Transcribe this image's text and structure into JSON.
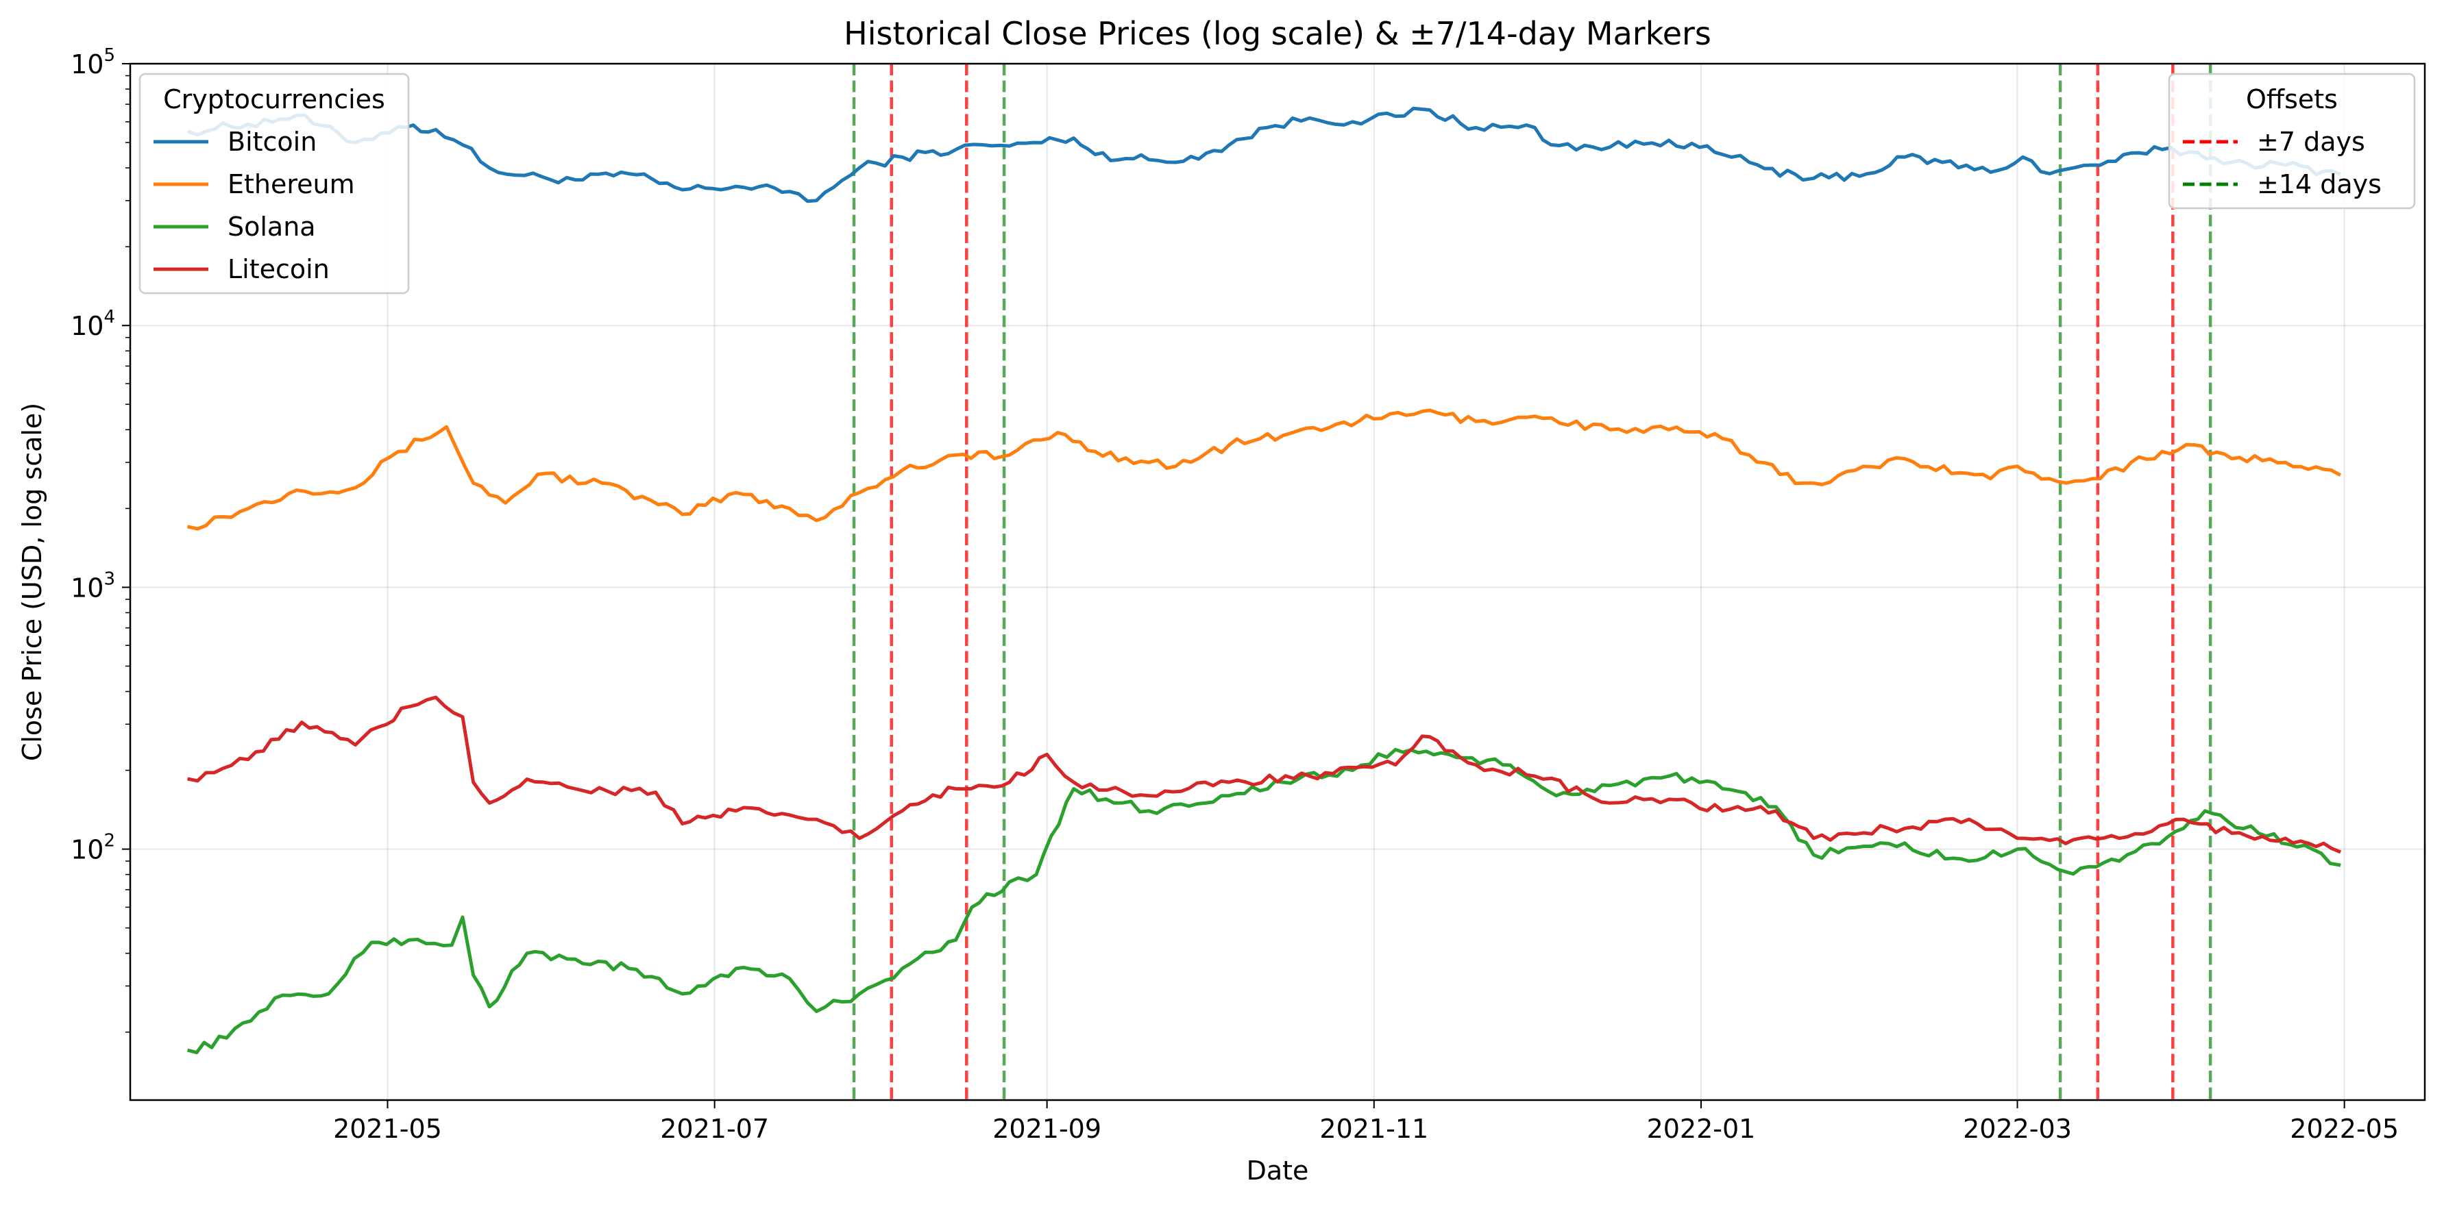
{
  "chart_data": {
    "type": "line",
    "title": "Historical Close Prices (log scale) & ±7/14-day Markers",
    "xlabel": "Date",
    "ylabel": "Close Price (USD, log scale)",
    "yscale": "log",
    "xlim": [
      "2021-03-14",
      "2022-05-16"
    ],
    "ylim": [
      11,
      100000
    ],
    "grid": true,
    "x_ticks": [
      {
        "date": "2021-05-01",
        "label": "2021-05"
      },
      {
        "date": "2021-07-01",
        "label": "2021-07"
      },
      {
        "date": "2021-09-01",
        "label": "2021-09"
      },
      {
        "date": "2021-11-01",
        "label": "2021-11"
      },
      {
        "date": "2022-01-01",
        "label": "2022-01"
      },
      {
        "date": "2022-03-01",
        "label": "2022-03"
      },
      {
        "date": "2022-05-01",
        "label": "2022-05"
      }
    ],
    "y_ticks": [
      {
        "value": 100,
        "base": "10",
        "exp": "2"
      },
      {
        "value": 1000,
        "base": "10",
        "exp": "3"
      },
      {
        "value": 10000,
        "base": "10",
        "exp": "4"
      },
      {
        "value": 100000,
        "base": "10",
        "exp": "5"
      }
    ],
    "series": [
      {
        "name": "Bitcoin",
        "color": "#1f77b4",
        "x": [
          "2021-03-25",
          "2021-04-05",
          "2021-04-14",
          "2021-04-25",
          "2021-05-03",
          "2021-05-10",
          "2021-05-15",
          "2021-05-20",
          "2021-05-25",
          "2021-06-05",
          "2021-06-15",
          "2021-06-25",
          "2021-07-05",
          "2021-07-15",
          "2021-07-20",
          "2021-07-28",
          "2021-08-05",
          "2021-08-15",
          "2021-08-20",
          "2021-08-25",
          "2021-09-06",
          "2021-09-10",
          "2021-09-20",
          "2021-09-25",
          "2021-10-05",
          "2021-10-12",
          "2021-10-20",
          "2021-10-28",
          "2021-11-05",
          "2021-11-10",
          "2021-11-20",
          "2021-12-01",
          "2021-12-04",
          "2021-12-15",
          "2021-12-26",
          "2022-01-05",
          "2022-01-10",
          "2022-01-20",
          "2022-01-22",
          "2022-02-01",
          "2022-02-08",
          "2022-02-15",
          "2022-02-24",
          "2022-03-02",
          "2022-03-07",
          "2022-03-15",
          "2022-03-28",
          "2022-04-02",
          "2022-04-10",
          "2022-04-20",
          "2022-04-30"
        ],
        "values": [
          55000,
          58800,
          63500,
          50000,
          57500,
          56000,
          49000,
          40000,
          37500,
          36000,
          38000,
          33000,
          34000,
          32500,
          30000,
          40000,
          44000,
          47000,
          49000,
          48500,
          52000,
          45000,
          43000,
          42000,
          49000,
          57000,
          62000,
          60000,
          63000,
          67000,
          57000,
          57000,
          49000,
          48000,
          51000,
          45000,
          42000,
          36000,
          36500,
          38000,
          44000,
          42000,
          38500,
          44000,
          38000,
          41000,
          47000,
          46000,
          42000,
          41000,
          38000
        ]
      },
      {
        "name": "Ethereum",
        "color": "#ff7f0e",
        "x": [
          "2021-03-25",
          "2021-04-05",
          "2021-04-14",
          "2021-04-25",
          "2021-05-03",
          "2021-05-12",
          "2021-05-17",
          "2021-05-23",
          "2021-05-29",
          "2021-06-10",
          "2021-06-25",
          "2021-07-05",
          "2021-07-15",
          "2021-07-20",
          "2021-07-28",
          "2021-08-05",
          "2021-08-15",
          "2021-08-25",
          "2021-09-03",
          "2021-09-10",
          "2021-09-20",
          "2021-09-25",
          "2021-10-05",
          "2021-10-15",
          "2021-10-25",
          "2021-11-01",
          "2021-11-10",
          "2021-11-20",
          "2021-12-01",
          "2021-12-15",
          "2021-12-26",
          "2022-01-05",
          "2022-01-10",
          "2022-01-20",
          "2022-01-22",
          "2022-02-08",
          "2022-02-24",
          "2022-03-01",
          "2022-03-07",
          "2022-03-15",
          "2022-03-28",
          "2022-04-03",
          "2022-04-10",
          "2022-04-20",
          "2022-04-30"
        ],
        "values": [
          1700,
          2000,
          2350,
          2400,
          3300,
          4100,
          2500,
          2100,
          2700,
          2500,
          1900,
          2300,
          2000,
          1800,
          2300,
          2800,
          3200,
          3200,
          3900,
          3300,
          3000,
          2900,
          3500,
          3800,
          4200,
          4400,
          4700,
          4300,
          4500,
          4000,
          4000,
          3700,
          3200,
          2500,
          2500,
          3100,
          2600,
          2900,
          2600,
          2600,
          3300,
          3500,
          3100,
          3000,
          2700
        ]
      },
      {
        "name": "Solana",
        "color": "#2ca02c",
        "x": [
          "2021-03-25",
          "2021-04-01",
          "2021-04-10",
          "2021-04-20",
          "2021-04-28",
          "2021-05-05",
          "2021-05-13",
          "2021-05-15",
          "2021-05-17",
          "2021-05-20",
          "2021-05-27",
          "2021-06-05",
          "2021-06-15",
          "2021-06-25",
          "2021-07-05",
          "2021-07-15",
          "2021-07-20",
          "2021-07-28",
          "2021-08-05",
          "2021-08-15",
          "2021-08-18",
          "2021-08-25",
          "2021-08-30",
          "2021-09-06",
          "2021-09-15",
          "2021-09-20",
          "2021-10-05",
          "2021-10-15",
          "2021-10-28",
          "2021-11-05",
          "2021-11-15",
          "2021-11-25",
          "2021-12-05",
          "2021-12-15",
          "2021-12-26",
          "2022-01-05",
          "2022-01-15",
          "2022-01-22",
          "2022-02-05",
          "2022-02-20",
          "2022-03-01",
          "2022-03-10",
          "2022-03-20",
          "2022-04-01",
          "2022-04-05",
          "2022-04-15",
          "2022-04-25",
          "2022-04-30"
        ],
        "values": [
          17,
          19,
          27,
          28,
          44,
          45,
          43,
          55,
          33,
          25,
          40,
          38,
          35,
          28,
          35,
          32,
          24,
          28,
          35,
          45,
          60,
          75,
          80,
          170,
          150,
          140,
          160,
          180,
          200,
          240,
          230,
          210,
          160,
          175,
          190,
          170,
          145,
          95,
          105,
          90,
          100,
          82,
          90,
          120,
          140,
          115,
          100,
          87
        ]
      },
      {
        "name": "Litecoin",
        "color": "#d62728",
        "x": [
          "2021-03-25",
          "2021-04-05",
          "2021-04-15",
          "2021-04-25",
          "2021-05-05",
          "2021-05-10",
          "2021-05-15",
          "2021-05-17",
          "2021-05-20",
          "2021-05-27",
          "2021-06-05",
          "2021-06-20",
          "2021-06-25",
          "2021-07-05",
          "2021-07-15",
          "2021-07-20",
          "2021-07-28",
          "2021-08-05",
          "2021-08-15",
          "2021-08-25",
          "2021-09-01",
          "2021-09-06",
          "2021-09-20",
          "2021-10-05",
          "2021-10-20",
          "2021-11-05",
          "2021-11-10",
          "2021-11-20",
          "2021-12-01",
          "2021-12-15",
          "2021-12-26",
          "2022-01-05",
          "2022-01-15",
          "2022-01-22",
          "2022-02-05",
          "2022-02-20",
          "2022-03-01",
          "2022-03-10",
          "2022-03-20",
          "2022-04-01",
          "2022-04-10",
          "2022-04-20",
          "2022-04-30"
        ],
        "values": [
          185,
          220,
          305,
          250,
          350,
          380,
          320,
          180,
          150,
          185,
          170,
          165,
          125,
          140,
          135,
          130,
          110,
          140,
          170,
          180,
          230,
          180,
          160,
          180,
          190,
          210,
          270,
          210,
          190,
          150,
          155,
          140,
          140,
          110,
          120,
          130,
          110,
          105,
          110,
          130,
          115,
          110,
          98
        ]
      }
    ],
    "vlines": [
      {
        "date": "2021-07-27",
        "color": "#228b22",
        "group": "±14 days"
      },
      {
        "date": "2021-08-03",
        "color": "#ff0000",
        "group": "±7 days"
      },
      {
        "date": "2021-08-17",
        "color": "#ff0000",
        "group": "±7 days"
      },
      {
        "date": "2021-08-24",
        "color": "#228b22",
        "group": "±14 days"
      },
      {
        "date": "2022-03-09",
        "color": "#228b22",
        "group": "±14 days"
      },
      {
        "date": "2022-03-16",
        "color": "#ff0000",
        "group": "±7 days"
      },
      {
        "date": "2022-03-30",
        "color": "#ff0000",
        "group": "±7 days"
      },
      {
        "date": "2022-04-06",
        "color": "#228b22",
        "group": "±14 days"
      }
    ],
    "legends": [
      {
        "title": "Cryptocurrencies",
        "placement": "upper left",
        "entries": [
          {
            "label": "Bitcoin",
            "color": "#1f77b4",
            "style": "solid"
          },
          {
            "label": "Ethereum",
            "color": "#ff7f0e",
            "style": "solid"
          },
          {
            "label": "Solana",
            "color": "#2ca02c",
            "style": "solid"
          },
          {
            "label": "Litecoin",
            "color": "#d62728",
            "style": "solid"
          }
        ]
      },
      {
        "title": "Offsets",
        "placement": "upper right",
        "entries": [
          {
            "label": "±7 days",
            "color": "#ff0000",
            "style": "dashed"
          },
          {
            "label": "±14 days",
            "color": "#008000",
            "style": "dashed"
          }
        ]
      }
    ]
  }
}
